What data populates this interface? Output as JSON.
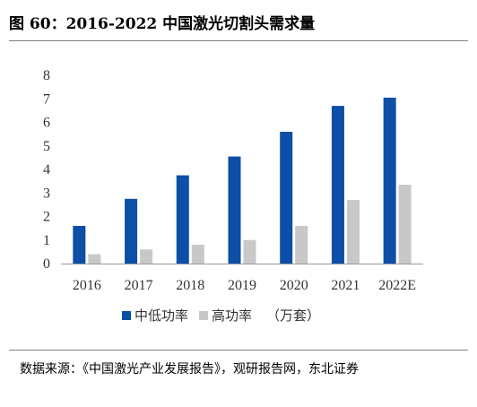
{
  "title": "图 60：2016-2022 中国激光切割头需求量",
  "source": "数据来源：《中国激光产业发展报告》，观研报告网，东北证券",
  "unit_label": "（万套）",
  "colors": {
    "mid_low": "#0d4ea6",
    "high": "#c8c8c8",
    "axis": "#9a9a9a"
  },
  "chart_data": {
    "type": "bar",
    "categories": [
      "2016",
      "2017",
      "2018",
      "2019",
      "2020",
      "2021",
      "2022E"
    ],
    "series": [
      {
        "name": "中低功率",
        "values": [
          1.6,
          2.75,
          3.75,
          4.55,
          5.6,
          6.7,
          7.05
        ]
      },
      {
        "name": "高功率",
        "values": [
          0.4,
          0.6,
          0.8,
          1.0,
          1.6,
          2.7,
          3.35
        ]
      }
    ],
    "ylim": [
      0,
      8
    ],
    "yticks": [
      0,
      1,
      2,
      3,
      4,
      5,
      6,
      7,
      8
    ],
    "legend": "bottom",
    "grid": false
  }
}
